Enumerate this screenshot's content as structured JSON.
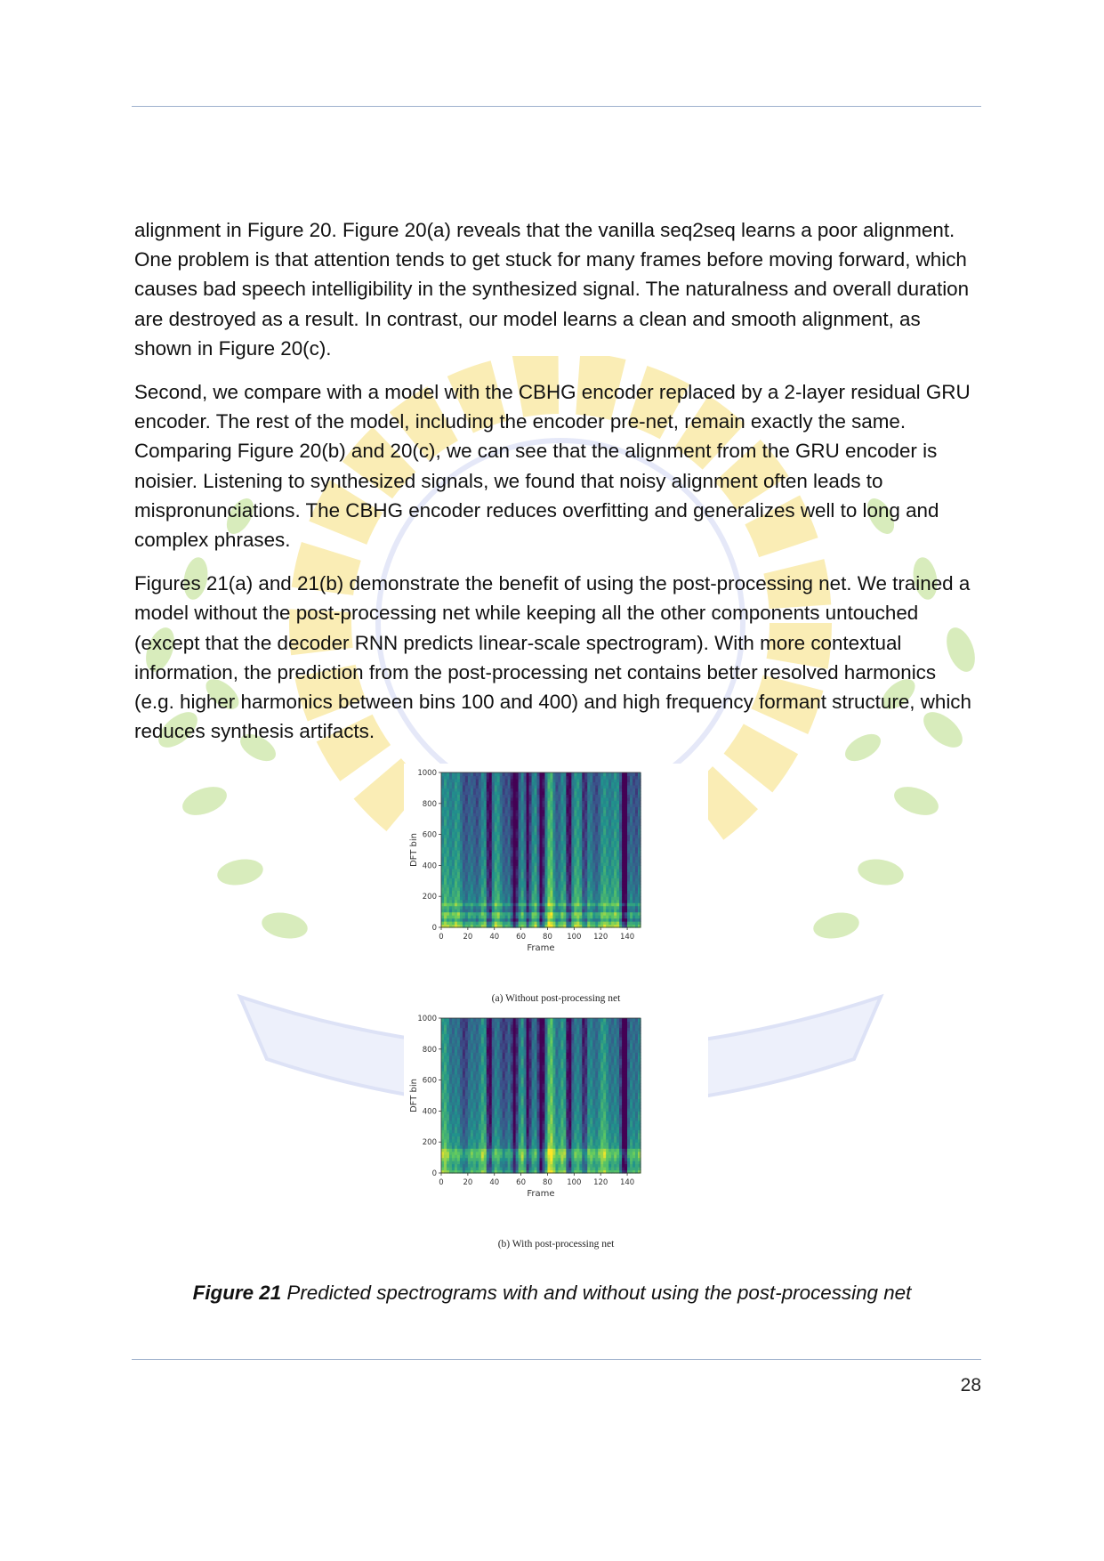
{
  "paragraphs": [
    "alignment in Figure 20. Figure 20(a) reveals that the vanilla seq2seq learns a poor alignment. One problem is that attention tends to get stuck for many frames before moving forward, which causes bad speech intelligibility in the synthesized signal. The naturalness and overall duration are destroyed as a result. In contrast, our model learns a clean and smooth alignment, as shown in Figure 20(c).",
    "Second, we compare with a model with the CBHG encoder replaced by a 2-layer residual GRU encoder. The rest of the model, including the encoder pre-net, remain exactly the same. Comparing Figure 20(b) and 20(c), we can see that the alignment from the GRU encoder is noisier. Listening to synthesized signals, we found that noisy alignment often leads to mispronunciations. The CBHG encoder reduces overfitting and generalizes well to long and complex phrases.",
    "Figures 21(a) and 21(b) demonstrate the benefit of using the post-processing net. We trained a model without the post-processing net while keeping all the other components untouched (except that the decoder RNN predicts linear-scale spectrogram). With more contextual information, the prediction from the post-processing net contains better resolved harmonics (e.g. higher harmonics between bins 100 and 400) and high frequency formant structure, which reduces synthesis artifacts."
  ],
  "figure": {
    "caption_label": "Figure 21",
    "caption_text": " Predicted spectrograms with and without using the post-processing net"
  },
  "chart_data": [
    {
      "type": "heatmap",
      "title": "(a) Without post-processing net",
      "xlabel": "Frame",
      "ylabel": "DFT bin",
      "xlim": [
        0,
        150
      ],
      "ylim": [
        0,
        1000
      ],
      "xticks": [
        "0",
        "20",
        "40",
        "60",
        "80",
        "100",
        "120",
        "140"
      ],
      "yticks": [
        "0",
        "200",
        "400",
        "600",
        "800",
        "1000"
      ],
      "colormap": "viridis",
      "dark_frames": [
        36,
        55,
        65,
        75,
        96,
        108,
        138
      ],
      "bright_frames": [
        82,
        108
      ]
    },
    {
      "type": "heatmap",
      "title": "(b) With post-processing net",
      "xlabel": "Frame",
      "ylabel": "DFT bin",
      "xlim": [
        0,
        150
      ],
      "ylim": [
        0,
        1000
      ],
      "xticks": [
        "0",
        "20",
        "40",
        "60",
        "80",
        "100",
        "120",
        "140"
      ],
      "yticks": [
        "0",
        "200",
        "400",
        "600",
        "800",
        "1000"
      ],
      "colormap": "viridis",
      "dark_frames": [
        36,
        55,
        65,
        75,
        96,
        108,
        138
      ],
      "bright_frames": [
        82,
        108
      ]
    }
  ],
  "page_number": "28",
  "colors": {
    "rule": "#9db0cc",
    "watermark_gear": "#f5d96a",
    "watermark_leaves": "#a9d36b",
    "watermark_ribbon": "#b9c4ec"
  }
}
